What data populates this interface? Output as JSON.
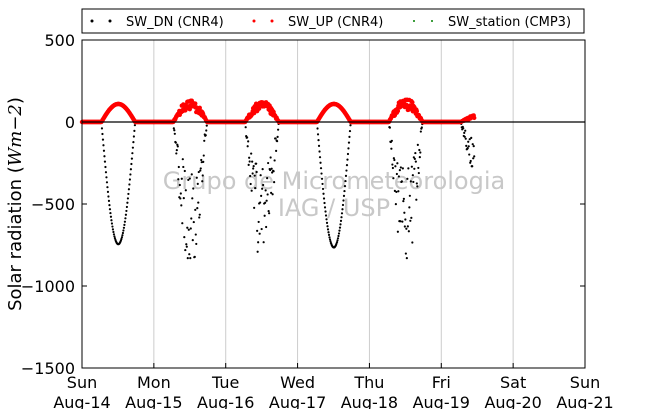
{
  "chart_data": {
    "type": "scatter",
    "title": "",
    "ylabel_plain": "Solar radiation (",
    "ylabel_math": "Wm−2",
    "ylabel_close": ")",
    "ylim": [
      -1500,
      500
    ],
    "y_ticks": [
      {
        "value": 500,
        "label": "500"
      },
      {
        "value": 0,
        "label": "0"
      },
      {
        "value": -500,
        "label": "−500"
      },
      {
        "value": -1000,
        "label": "−1000"
      },
      {
        "value": -1500,
        "label": "−1500"
      }
    ],
    "xlim": [
      "2014-08-14",
      "2014-08-21"
    ],
    "x_ticks": [
      {
        "date": "2014-08-14",
        "day": "Sun",
        "label": "Aug-14"
      },
      {
        "date": "2014-08-15",
        "day": "Mon",
        "label": "Aug-15"
      },
      {
        "date": "2014-08-16",
        "day": "Tue",
        "label": "Aug-16"
      },
      {
        "date": "2014-08-17",
        "day": "Wed",
        "label": "Aug-17"
      },
      {
        "date": "2014-08-18",
        "day": "Thu",
        "label": "Aug-18"
      },
      {
        "date": "2014-08-19",
        "day": "Fri",
        "label": "Aug-19"
      },
      {
        "date": "2014-08-20",
        "day": "Sat",
        "label": "Aug-20"
      },
      {
        "date": "2014-08-21",
        "day": "Sun",
        "label": "Aug-21"
      }
    ],
    "grid": "vertical",
    "zero_line": true,
    "legend_position": "top",
    "watermark": [
      "Grupo de Micrometeorologia",
      "IAG / USP"
    ],
    "series": [
      {
        "name": "SW_DN (CNR4)",
        "color": "#000000",
        "daily_peak_values": [
          {
            "date": "2014-08-14",
            "value": -745
          },
          {
            "date": "2014-08-15",
            "value": -830
          },
          {
            "date": "2014-08-16",
            "value": -800
          },
          {
            "date": "2014-08-17",
            "value": -765
          },
          {
            "date": "2014-08-18",
            "value": -830
          },
          {
            "date": "2014-08-19",
            "value": -270
          }
        ]
      },
      {
        "name": "SW_UP (CNR4)",
        "color": "#ff0000",
        "daily_peak_values": [
          {
            "date": "2014-08-14",
            "value": 110
          },
          {
            "date": "2014-08-15",
            "value": 130
          },
          {
            "date": "2014-08-16",
            "value": 120
          },
          {
            "date": "2014-08-17",
            "value": 110
          },
          {
            "date": "2014-08-18",
            "value": 135
          },
          {
            "date": "2014-08-19",
            "value": 40
          }
        ]
      },
      {
        "name": "SW_station (CMP3)",
        "color": "#008000",
        "daily_peak_values": []
      }
    ]
  }
}
